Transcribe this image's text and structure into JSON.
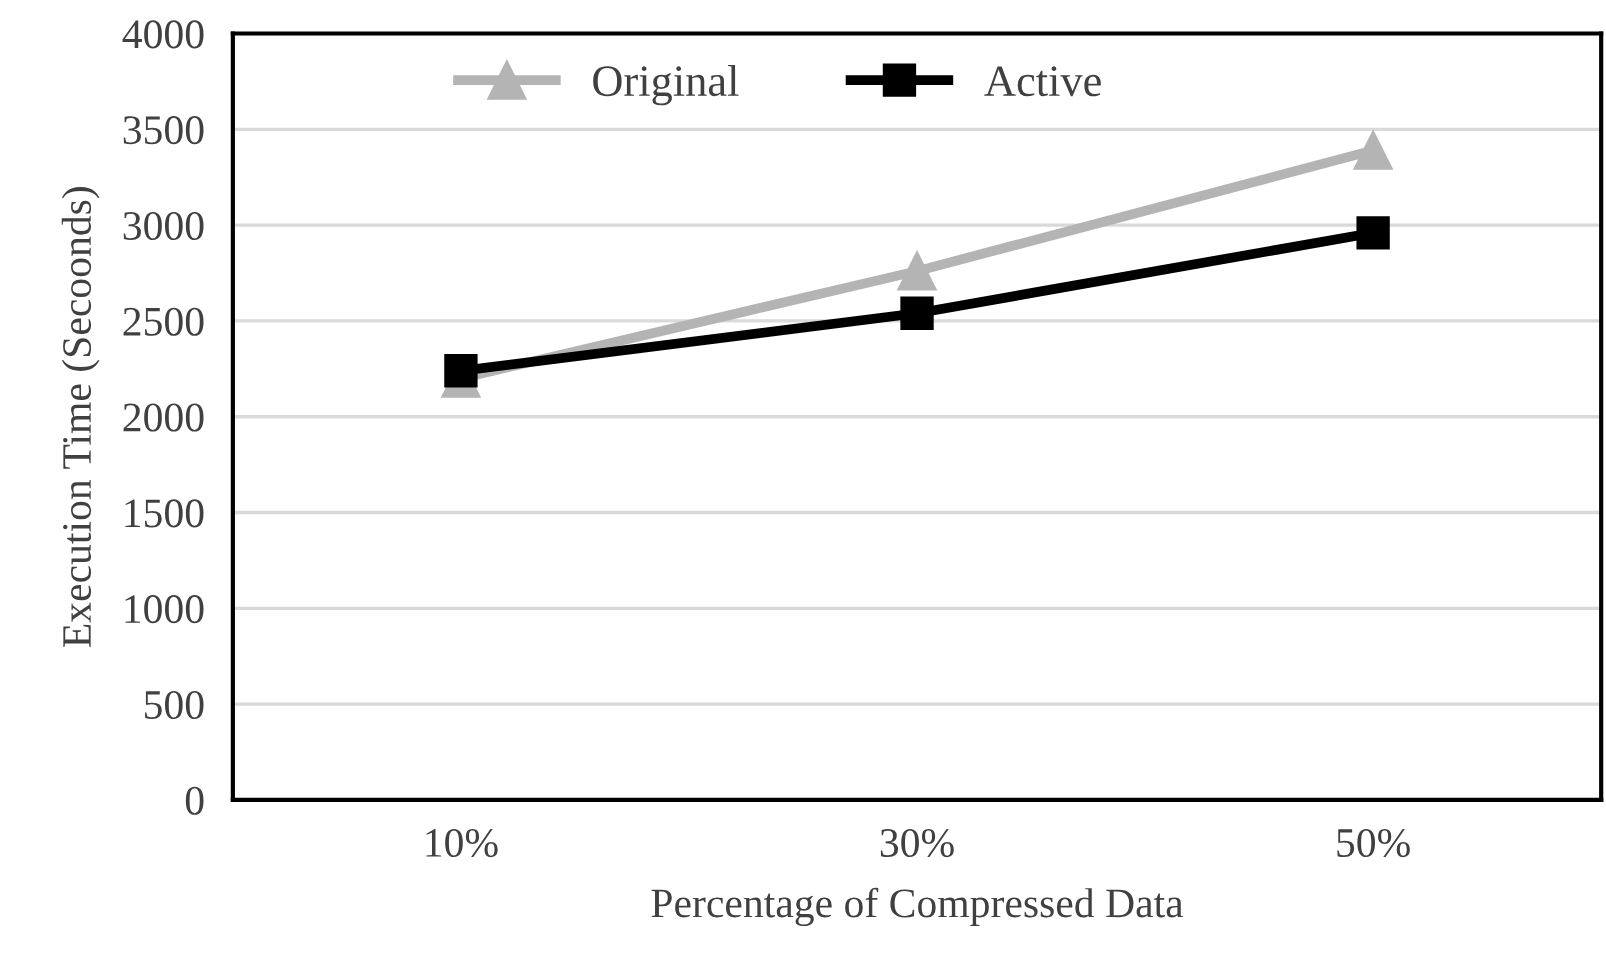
{
  "chart_data": {
    "type": "line",
    "xlabel": "Percentage of Compressed Data",
    "ylabel": "Execution Time (Secoonds)",
    "categories": [
      "10%",
      "30%",
      "50%"
    ],
    "series": [
      {
        "name": "Original",
        "color": "#b4b4b4",
        "values": [
          2200,
          2760,
          3390
        ],
        "marker": "triangle"
      },
      {
        "name": "Active",
        "color": "#000000",
        "values": [
          2240,
          2540,
          2960
        ],
        "marker": "square"
      }
    ],
    "ylim": [
      0,
      4000
    ],
    "yticks": [
      0,
      500,
      1000,
      1500,
      2000,
      2500,
      3000,
      3500,
      4000
    ],
    "grid": "y",
    "legend": "top",
    "line_style": "solid"
  }
}
